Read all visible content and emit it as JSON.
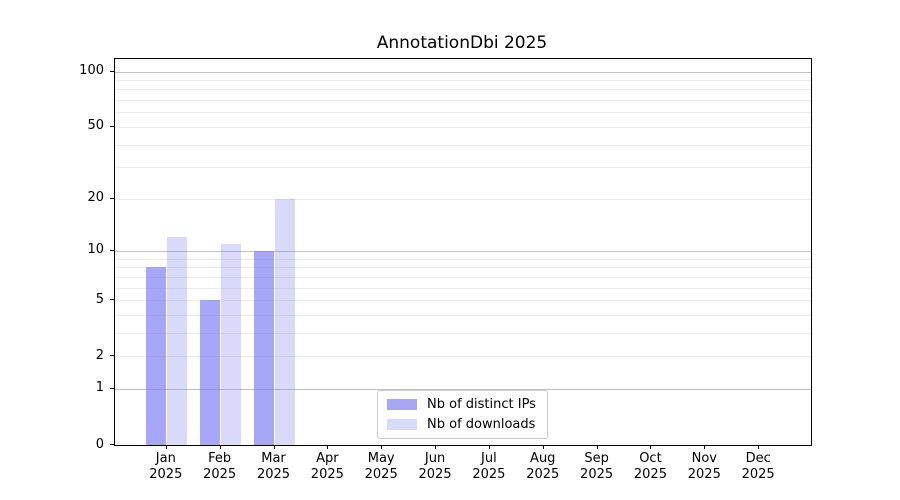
{
  "chart_data": {
    "type": "bar",
    "title": "AnnotationDbi 2025",
    "x_tick_top": [
      "Jan",
      "Feb",
      "Mar",
      "Apr",
      "May",
      "Jun",
      "Jul",
      "Aug",
      "Sep",
      "Oct",
      "Nov",
      "Dec"
    ],
    "x_tick_bottom": "2025",
    "series": [
      {
        "name": "Nb of distinct IPs",
        "color": "rgba(120,120,245,0.65)",
        "color_hex_on_white": "#a8a8f8",
        "values": [
          8,
          5,
          10,
          null,
          null,
          null,
          null,
          null,
          null,
          null,
          null,
          null
        ]
      },
      {
        "name": "Nb of downloads",
        "color": "rgba(130,130,240,0.30)",
        "color_hex_on_white": "#d9d9fa",
        "values": [
          12,
          11,
          20,
          null,
          null,
          null,
          null,
          null,
          null,
          null,
          null,
          null
        ]
      }
    ],
    "y_axis": {
      "scale": "log10(1+x)",
      "tick_values": [
        0,
        1,
        2,
        5,
        10,
        20,
        50,
        100
      ],
      "major_gridlines": [
        1,
        10,
        100
      ],
      "minor_gridlines": [
        2,
        3,
        4,
        5,
        6,
        7,
        8,
        9,
        20,
        30,
        40,
        50,
        60,
        70,
        80,
        90
      ],
      "ylim": [
        0,
        117
      ]
    },
    "legend_position": "bottom-center",
    "grid_on": true,
    "colors": {
      "axis": "#000000",
      "grid_major": "#c0c0c0",
      "grid_minor": "#ececec",
      "background": "#ffffff",
      "legend_border": "#cccccc",
      "text": "#000000"
    }
  }
}
